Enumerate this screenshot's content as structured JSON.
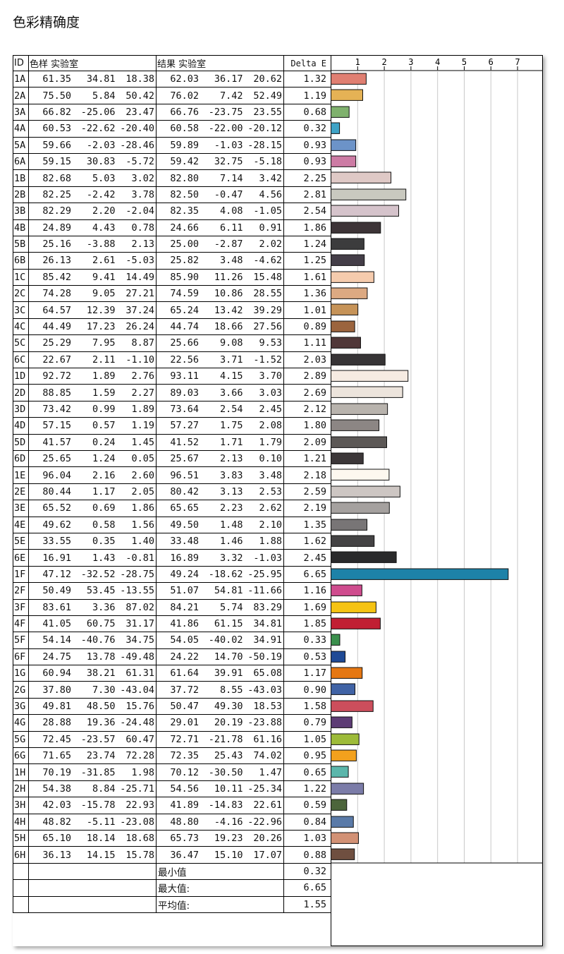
{
  "title": "色彩精确度",
  "headers": {
    "id": "ID",
    "sample": "色样 实验室",
    "result": "结果 实验室",
    "delta": "Delta E"
  },
  "chart_data": {
    "type": "bar",
    "orientation": "horizontal",
    "xlim": [
      0,
      7
    ],
    "x_ticks": [
      "1",
      "2",
      "3",
      "4",
      "5",
      "6",
      "7"
    ],
    "grid": true,
    "categories": [
      "1A",
      "2A",
      "3A",
      "4A",
      "5A",
      "6A",
      "1B",
      "2B",
      "3B",
      "4B",
      "5B",
      "6B",
      "1C",
      "2C",
      "3C",
      "4C",
      "5C",
      "6C",
      "1D",
      "2D",
      "3D",
      "4D",
      "5D",
      "6D",
      "1E",
      "2E",
      "3E",
      "4E",
      "5E",
      "6E",
      "1F",
      "2F",
      "3F",
      "4F",
      "5F",
      "6F",
      "1G",
      "2G",
      "3G",
      "4G",
      "5G",
      "6G",
      "1H",
      "2H",
      "3H",
      "4H",
      "5H",
      "6H"
    ],
    "values": [
      1.32,
      1.19,
      0.68,
      0.32,
      0.93,
      0.93,
      2.25,
      2.81,
      2.54,
      1.86,
      1.24,
      1.25,
      1.61,
      1.36,
      1.01,
      0.89,
      1.11,
      2.03,
      2.89,
      2.69,
      2.12,
      1.8,
      2.09,
      1.21,
      2.18,
      2.59,
      2.19,
      1.35,
      1.62,
      2.45,
      6.65,
      1.16,
      1.69,
      1.85,
      0.33,
      0.53,
      1.17,
      0.9,
      1.58,
      0.79,
      1.05,
      0.95,
      0.65,
      1.22,
      0.59,
      0.84,
      1.03,
      0.88
    ],
    "colors": [
      "#e07f72",
      "#e5b255",
      "#7fb16d",
      "#3fa3c6",
      "#6c93c8",
      "#cc7ba4",
      "#dfc9c6",
      "#c9c9bf",
      "#d5c3cb",
      "#3d3437",
      "#3c3c3d",
      "#443e48",
      "#f5cbad",
      "#dca982",
      "#c69358",
      "#9b643e",
      "#503738",
      "#373436",
      "#f6ebe2",
      "#ece4dc",
      "#b8b3ad",
      "#8c8684",
      "#5c5856",
      "#3c3739",
      "#fdf8ef",
      "#cdc6c3",
      "#a5a19f",
      "#787576",
      "#444344",
      "#2a2a2b",
      "#1d82a8",
      "#cf4c8e",
      "#f5c313",
      "#c11f33",
      "#3b8f4d",
      "#1f4a96",
      "#e57712",
      "#4063a5",
      "#cc4e5c",
      "#5d3c75",
      "#9dbb39",
      "#f3a11d",
      "#5bb6ab",
      "#7b7ca8",
      "#4c653b",
      "#5a7aa8",
      "#d29175",
      "#6f4f40"
    ]
  },
  "rows": [
    [
      "1A",
      "61.35",
      "34.81",
      "18.38",
      "62.03",
      "36.17",
      "20.62",
      "1.32"
    ],
    [
      "2A",
      "75.50",
      "5.84",
      "50.42",
      "76.02",
      "7.42",
      "52.49",
      "1.19"
    ],
    [
      "3A",
      "66.82",
      "-25.06",
      "23.47",
      "66.76",
      "-23.75",
      "23.55",
      "0.68"
    ],
    [
      "4A",
      "60.53",
      "-22.62",
      "-20.40",
      "60.58",
      "-22.00",
      "-20.12",
      "0.32"
    ],
    [
      "5A",
      "59.66",
      "-2.03",
      "-28.46",
      "59.89",
      "-1.03",
      "-28.15",
      "0.93"
    ],
    [
      "6A",
      "59.15",
      "30.83",
      "-5.72",
      "59.42",
      "32.75",
      "-5.18",
      "0.93"
    ],
    [
      "1B",
      "82.68",
      "5.03",
      "3.02",
      "82.80",
      "7.14",
      "3.42",
      "2.25"
    ],
    [
      "2B",
      "82.25",
      "-2.42",
      "3.78",
      "82.50",
      "-0.47",
      "4.56",
      "2.81"
    ],
    [
      "3B",
      "82.29",
      "2.20",
      "-2.04",
      "82.35",
      "4.08",
      "-1.05",
      "2.54"
    ],
    [
      "4B",
      "24.89",
      "4.43",
      "0.78",
      "24.66",
      "6.11",
      "0.91",
      "1.86"
    ],
    [
      "5B",
      "25.16",
      "-3.88",
      "2.13",
      "25.00",
      "-2.87",
      "2.02",
      "1.24"
    ],
    [
      "6B",
      "26.13",
      "2.61",
      "-5.03",
      "25.82",
      "3.48",
      "-4.62",
      "1.25"
    ],
    [
      "1C",
      "85.42",
      "9.41",
      "14.49",
      "85.90",
      "11.26",
      "15.48",
      "1.61"
    ],
    [
      "2C",
      "74.28",
      "9.05",
      "27.21",
      "74.59",
      "10.86",
      "28.55",
      "1.36"
    ],
    [
      "3C",
      "64.57",
      "12.39",
      "37.24",
      "65.24",
      "13.42",
      "39.29",
      "1.01"
    ],
    [
      "4C",
      "44.49",
      "17.23",
      "26.24",
      "44.74",
      "18.66",
      "27.56",
      "0.89"
    ],
    [
      "5C",
      "25.29",
      "7.95",
      "8.87",
      "25.66",
      "9.08",
      "9.53",
      "1.11"
    ],
    [
      "6C",
      "22.67",
      "2.11",
      "-1.10",
      "22.56",
      "3.71",
      "-1.52",
      "2.03"
    ],
    [
      "1D",
      "92.72",
      "1.89",
      "2.76",
      "93.11",
      "4.15",
      "3.70",
      "2.89"
    ],
    [
      "2D",
      "88.85",
      "1.59",
      "2.27",
      "89.03",
      "3.66",
      "3.03",
      "2.69"
    ],
    [
      "3D",
      "73.42",
      "0.99",
      "1.89",
      "73.64",
      "2.54",
      "2.45",
      "2.12"
    ],
    [
      "4D",
      "57.15",
      "0.57",
      "1.19",
      "57.27",
      "1.75",
      "2.08",
      "1.80"
    ],
    [
      "5D",
      "41.57",
      "0.24",
      "1.45",
      "41.52",
      "1.71",
      "1.79",
      "2.09"
    ],
    [
      "6D",
      "25.65",
      "1.24",
      "0.05",
      "25.67",
      "2.13",
      "0.10",
      "1.21"
    ],
    [
      "1E",
      "96.04",
      "2.16",
      "2.60",
      "96.51",
      "3.83",
      "3.48",
      "2.18"
    ],
    [
      "2E",
      "80.44",
      "1.17",
      "2.05",
      "80.42",
      "3.13",
      "2.53",
      "2.59"
    ],
    [
      "3E",
      "65.52",
      "0.69",
      "1.86",
      "65.65",
      "2.23",
      "2.62",
      "2.19"
    ],
    [
      "4E",
      "49.62",
      "0.58",
      "1.56",
      "49.50",
      "1.48",
      "2.10",
      "1.35"
    ],
    [
      "5E",
      "33.55",
      "0.35",
      "1.40",
      "33.48",
      "1.46",
      "1.88",
      "1.62"
    ],
    [
      "6E",
      "16.91",
      "1.43",
      "-0.81",
      "16.89",
      "3.32",
      "-1.03",
      "2.45"
    ],
    [
      "1F",
      "47.12",
      "-32.52",
      "-28.75",
      "49.24",
      "-18.62",
      "-25.95",
      "6.65"
    ],
    [
      "2F",
      "50.49",
      "53.45",
      "-13.55",
      "51.07",
      "54.81",
      "-11.66",
      "1.16"
    ],
    [
      "3F",
      "83.61",
      "3.36",
      "87.02",
      "84.21",
      "5.74",
      "83.29",
      "1.69"
    ],
    [
      "4F",
      "41.05",
      "60.75",
      "31.17",
      "41.86",
      "61.15",
      "34.81",
      "1.85"
    ],
    [
      "5F",
      "54.14",
      "-40.76",
      "34.75",
      "54.05",
      "-40.02",
      "34.91",
      "0.33"
    ],
    [
      "6F",
      "24.75",
      "13.78",
      "-49.48",
      "24.22",
      "14.70",
      "-50.19",
      "0.53"
    ],
    [
      "1G",
      "60.94",
      "38.21",
      "61.31",
      "61.64",
      "39.91",
      "65.08",
      "1.17"
    ],
    [
      "2G",
      "37.80",
      "7.30",
      "-43.04",
      "37.72",
      "8.55",
      "-43.03",
      "0.90"
    ],
    [
      "3G",
      "49.81",
      "48.50",
      "15.76",
      "50.47",
      "49.30",
      "18.53",
      "1.58"
    ],
    [
      "4G",
      "28.88",
      "19.36",
      "-24.48",
      "29.01",
      "20.19",
      "-23.88",
      "0.79"
    ],
    [
      "5G",
      "72.45",
      "-23.57",
      "60.47",
      "72.71",
      "-21.78",
      "61.16",
      "1.05"
    ],
    [
      "6G",
      "71.65",
      "23.74",
      "72.28",
      "72.35",
      "25.43",
      "74.02",
      "0.95"
    ],
    [
      "1H",
      "70.19",
      "-31.85",
      "1.98",
      "70.12",
      "-30.50",
      "1.47",
      "0.65"
    ],
    [
      "2H",
      "54.38",
      "8.84",
      "-25.71",
      "54.56",
      "10.11",
      "-25.34",
      "1.22"
    ],
    [
      "3H",
      "42.03",
      "-15.78",
      "22.93",
      "41.89",
      "-14.83",
      "22.61",
      "0.59"
    ],
    [
      "4H",
      "48.82",
      "-5.11",
      "-23.08",
      "48.80",
      "-4.16",
      "-22.96",
      "0.84"
    ],
    [
      "5H",
      "65.10",
      "18.14",
      "18.68",
      "65.73",
      "19.23",
      "20.26",
      "1.03"
    ],
    [
      "6H",
      "36.13",
      "14.15",
      "15.78",
      "36.47",
      "15.10",
      "17.07",
      "0.88"
    ]
  ],
  "summary": [
    {
      "label": "最小值",
      "value": "0.32"
    },
    {
      "label": "最大值:",
      "value": "6.65"
    },
    {
      "label": "平均值:",
      "value": "1.55"
    }
  ]
}
